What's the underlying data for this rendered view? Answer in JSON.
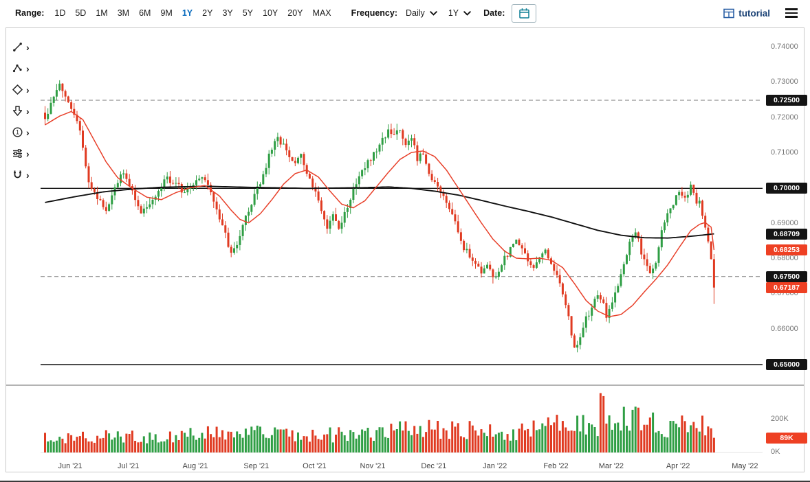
{
  "toolbar": {
    "range_label": "Range:",
    "range_options": [
      "1D",
      "5D",
      "1M",
      "3M",
      "6M",
      "9M",
      "1Y",
      "2Y",
      "3Y",
      "5Y",
      "10Y",
      "20Y",
      "MAX"
    ],
    "range_selected": "1Y",
    "frequency_label": "Frequency:",
    "frequency_value": "Daily",
    "period_value": "1Y",
    "date_label": "Date:",
    "tutorial_label": "tutorial"
  },
  "drawing_tools": [
    {
      "name": "trendline-tool"
    },
    {
      "name": "multi-point-line-tool"
    },
    {
      "name": "shape-tool"
    },
    {
      "name": "arrow-tool"
    },
    {
      "name": "numbered-annotation-tool"
    },
    {
      "name": "sliders-tool"
    },
    {
      "name": "magnet-tool"
    }
  ],
  "chart_data": {
    "type": "candlestick",
    "frequency": "Daily",
    "range": "1Y",
    "up_color": "#2f9e44",
    "down_color": "#e03a21",
    "x_ticks": [
      {
        "label": "Jun '21",
        "i": 9
      },
      {
        "label": "Jul '21",
        "i": 29
      },
      {
        "label": "Aug '21",
        "i": 52
      },
      {
        "label": "Sep '21",
        "i": 73
      },
      {
        "label": "Oct '21",
        "i": 93
      },
      {
        "label": "Nov '21",
        "i": 113
      },
      {
        "label": "Dec '21",
        "i": 134
      },
      {
        "label": "Jan '22",
        "i": 155
      },
      {
        "label": "Feb '22",
        "i": 176
      },
      {
        "label": "Mar '22",
        "i": 195
      },
      {
        "label": "Apr '22",
        "i": 218
      },
      {
        "label": "May '22",
        "i": 241
      }
    ],
    "y_axis": {
      "min": 0.65,
      "max": 0.74,
      "labels": [
        0.74,
        0.73,
        0.72,
        0.71,
        0.69,
        0.68,
        0.67,
        0.66
      ]
    },
    "levels": [
      {
        "value": 0.725,
        "style": "dashed",
        "badge": "0.72500"
      },
      {
        "value": 0.7,
        "style": "solid",
        "badge": "0.70000"
      },
      {
        "value": 0.675,
        "style": "dashed",
        "badge": "0.67500"
      },
      {
        "value": 0.65,
        "style": "solid",
        "badge": "0.65000"
      }
    ],
    "last_price": {
      "value": 0.67187,
      "badge": "0.67187",
      "last_low": 0.6672
    },
    "ma_fast": {
      "color": "#e8402a",
      "current": 0.68253,
      "badge": "0.68253",
      "anchors": [
        [
          0,
          0.718
        ],
        [
          5,
          0.7205
        ],
        [
          9,
          0.7218
        ],
        [
          13,
          0.7195
        ],
        [
          17,
          0.7135
        ],
        [
          21,
          0.7075
        ],
        [
          25,
          0.703
        ],
        [
          30,
          0.7
        ],
        [
          35,
          0.6975
        ],
        [
          40,
          0.6968
        ],
        [
          45,
          0.6988
        ],
        [
          50,
          0.7002
        ],
        [
          55,
          0.7008
        ],
        [
          60,
          0.6978
        ],
        [
          64,
          0.6938
        ],
        [
          67,
          0.6912
        ],
        [
          70,
          0.6902
        ],
        [
          74,
          0.6928
        ],
        [
          78,
          0.6968
        ],
        [
          82,
          0.7012
        ],
        [
          86,
          0.7042
        ],
        [
          90,
          0.7052
        ],
        [
          94,
          0.7032
        ],
        [
          98,
          0.6992
        ],
        [
          102,
          0.6955
        ],
        [
          106,
          0.6945
        ],
        [
          110,
          0.6965
        ],
        [
          114,
          0.7005
        ],
        [
          118,
          0.7045
        ],
        [
          122,
          0.7082
        ],
        [
          126,
          0.7102
        ],
        [
          130,
          0.7106
        ],
        [
          134,
          0.709
        ],
        [
          138,
          0.7052
        ],
        [
          142,
          0.7002
        ],
        [
          146,
          0.6952
        ],
        [
          150,
          0.6902
        ],
        [
          154,
          0.6856
        ],
        [
          158,
          0.6822
        ],
        [
          162,
          0.6802
        ],
        [
          166,
          0.68
        ],
        [
          170,
          0.6802
        ],
        [
          174,
          0.6796
        ],
        [
          178,
          0.6775
        ],
        [
          182,
          0.673
        ],
        [
          186,
          0.6682
        ],
        [
          190,
          0.6652
        ],
        [
          194,
          0.6636
        ],
        [
          198,
          0.6642
        ],
        [
          202,
          0.6668
        ],
        [
          206,
          0.6706
        ],
        [
          210,
          0.6742
        ],
        [
          214,
          0.6782
        ],
        [
          218,
          0.6832
        ],
        [
          222,
          0.688
        ],
        [
          225,
          0.6898
        ],
        [
          227,
          0.6903
        ],
        [
          229,
          0.689
        ],
        [
          230,
          0.68253
        ]
      ]
    },
    "ma_slow": {
      "color": "#111111",
      "current": 0.68709,
      "badge": "0.68709",
      "anchors": [
        [
          0,
          0.696
        ],
        [
          10,
          0.6976
        ],
        [
          20,
          0.699
        ],
        [
          30,
          0.6998
        ],
        [
          40,
          0.7003
        ],
        [
          55,
          0.7006
        ],
        [
          70,
          0.7003
        ],
        [
          90,
          0.7
        ],
        [
          110,
          0.7002
        ],
        [
          118,
          0.7004
        ],
        [
          126,
          0.7
        ],
        [
          134,
          0.6992
        ],
        [
          142,
          0.6981
        ],
        [
          150,
          0.6966
        ],
        [
          158,
          0.695
        ],
        [
          166,
          0.6935
        ],
        [
          174,
          0.6919
        ],
        [
          182,
          0.69
        ],
        [
          190,
          0.6881
        ],
        [
          198,
          0.6867
        ],
        [
          206,
          0.686
        ],
        [
          214,
          0.6859
        ],
        [
          222,
          0.6864
        ],
        [
          230,
          0.68709
        ]
      ]
    },
    "candles": {
      "count": 231,
      "last_close": 0.67187,
      "close_anchors": [
        [
          0,
          0.7195
        ],
        [
          2,
          0.724
        ],
        [
          5,
          0.729
        ],
        [
          7,
          0.7255
        ],
        [
          9,
          0.723
        ],
        [
          12,
          0.717
        ],
        [
          15,
          0.702
        ],
        [
          18,
          0.6965
        ],
        [
          21,
          0.6945
        ],
        [
          24,
          0.7
        ],
        [
          27,
          0.705
        ],
        [
          30,
          0.699
        ],
        [
          33,
          0.693
        ],
        [
          36,
          0.695
        ],
        [
          39,
          0.699
        ],
        [
          42,
          0.703
        ],
        [
          45,
          0.701
        ],
        [
          48,
          0.699
        ],
        [
          51,
          0.701
        ],
        [
          54,
          0.704
        ],
        [
          57,
          0.699
        ],
        [
          60,
          0.692
        ],
        [
          62,
          0.687
        ],
        [
          64,
          0.6815
        ],
        [
          66,
          0.6845
        ],
        [
          68,
          0.69
        ],
        [
          71,
          0.6955
        ],
        [
          74,
          0.702
        ],
        [
          77,
          0.709
        ],
        [
          80,
          0.7145
        ],
        [
          83,
          0.711
        ],
        [
          85,
          0.707
        ],
        [
          88,
          0.71
        ],
        [
          90,
          0.704
        ],
        [
          93,
          0.699
        ],
        [
          95,
          0.6945
        ],
        [
          97,
          0.6885
        ],
        [
          99,
          0.6925
        ],
        [
          101,
          0.689
        ],
        [
          103,
          0.693
        ],
        [
          106,
          0.699
        ],
        [
          109,
          0.705
        ],
        [
          112,
          0.7085
        ],
        [
          115,
          0.7125
        ],
        [
          118,
          0.7165
        ],
        [
          120,
          0.7145
        ],
        [
          122,
          0.717
        ],
        [
          124,
          0.712
        ],
        [
          126,
          0.7145
        ],
        [
          128,
          0.7085
        ],
        [
          130,
          0.7105
        ],
        [
          132,
          0.705
        ],
        [
          134,
          0.701
        ],
        [
          136,
          0.699
        ],
        [
          138,
          0.695
        ],
        [
          140,
          0.693
        ],
        [
          142,
          0.688
        ],
        [
          144,
          0.683
        ],
        [
          146,
          0.681
        ],
        [
          148,
          0.679
        ],
        [
          150,
          0.6755
        ],
        [
          152,
          0.678
        ],
        [
          154,
          0.6745
        ],
        [
          156,
          0.6765
        ],
        [
          158,
          0.68
        ],
        [
          160,
          0.683
        ],
        [
          162,
          0.685
        ],
        [
          164,
          0.6825
        ],
        [
          166,
          0.6795
        ],
        [
          168,
          0.6775
        ],
        [
          170,
          0.68
        ],
        [
          172,
          0.683
        ],
        [
          174,
          0.6785
        ],
        [
          176,
          0.676
        ],
        [
          178,
          0.67
        ],
        [
          180,
          0.664
        ],
        [
          182,
          0.654
        ],
        [
          184,
          0.6575
        ],
        [
          186,
          0.663
        ],
        [
          188,
          0.6665
        ],
        [
          190,
          0.6695
        ],
        [
          192,
          0.667
        ],
        [
          193,
          0.664
        ],
        [
          195,
          0.668
        ],
        [
          197,
          0.672
        ],
        [
          199,
          0.678
        ],
        [
          201,
          0.685
        ],
        [
          203,
          0.688
        ],
        [
          205,
          0.682
        ],
        [
          207,
          0.678
        ],
        [
          208,
          0.6755
        ],
        [
          210,
          0.6795
        ],
        [
          212,
          0.688
        ],
        [
          214,
          0.693
        ],
        [
          216,
          0.696
        ],
        [
          218,
          0.699
        ],
        [
          220,
          0.6965
        ],
        [
          222,
          0.7005
        ],
        [
          223,
          0.699
        ],
        [
          224,
          0.695
        ],
        [
          225,
          0.6968
        ],
        [
          226,
          0.692
        ],
        [
          227,
          0.688
        ],
        [
          228,
          0.6845
        ],
        [
          229,
          0.6795
        ],
        [
          230,
          0.67187
        ]
      ]
    },
    "volume": {
      "unit": "K",
      "axis_labels": [
        {
          "label": "200K",
          "v": 200
        },
        {
          "label": "0K",
          "v": 0
        }
      ],
      "current": 89,
      "current_badge": "89K",
      "bar_anchors_k": [
        [
          0,
          85
        ],
        [
          15,
          95
        ],
        [
          30,
          92
        ],
        [
          45,
          100
        ],
        [
          60,
          115
        ],
        [
          75,
          118
        ],
        [
          90,
          105
        ],
        [
          105,
          112
        ],
        [
          120,
          128
        ],
        [
          135,
          148
        ],
        [
          148,
          132
        ],
        [
          160,
          120
        ],
        [
          170,
          148
        ],
        [
          178,
          168
        ],
        [
          183,
          178
        ],
        [
          188,
          162
        ],
        [
          190,
          170
        ],
        [
          192,
          330
        ],
        [
          193,
          200
        ],
        [
          196,
          185
        ],
        [
          199,
          215
        ],
        [
          202,
          230
        ],
        [
          205,
          210
        ],
        [
          208,
          185
        ],
        [
          211,
          172
        ],
        [
          214,
          165
        ],
        [
          217,
          185
        ],
        [
          220,
          198
        ],
        [
          223,
          180
        ],
        [
          226,
          165
        ],
        [
          228,
          128
        ],
        [
          230,
          89
        ]
      ]
    }
  }
}
